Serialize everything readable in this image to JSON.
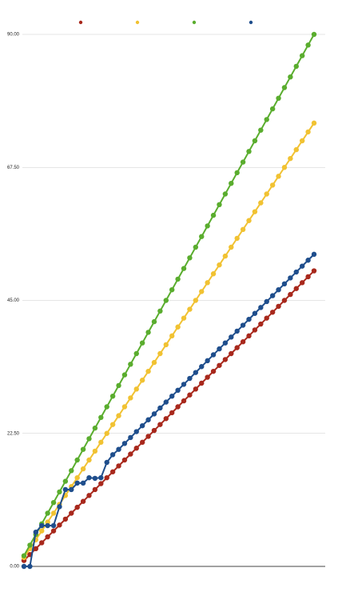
{
  "chart_data": {
    "type": "line",
    "categories": [
      null,
      null,
      null,
      null,
      null,
      null,
      null,
      null,
      null,
      null,
      null,
      null,
      null,
      null,
      null,
      null,
      null,
      null,
      null,
      null,
      null,
      null,
      null,
      null,
      null,
      null,
      null,
      null,
      null,
      null,
      null,
      null,
      null,
      null,
      null,
      null,
      null,
      null,
      null,
      null,
      null,
      null,
      null,
      null,
      null,
      null,
      null,
      null,
      null,
      null
    ],
    "series": [
      {
        "color": "#a8281c",
        "values": [
          1,
          2,
          3,
          4,
          5,
          6,
          7,
          8,
          9,
          10,
          11,
          12,
          13,
          14,
          15,
          16,
          17,
          18,
          19,
          20,
          21,
          22,
          23,
          24,
          25,
          26,
          27,
          28,
          29,
          30,
          31,
          32,
          33,
          34,
          35,
          36,
          37,
          38,
          39,
          40,
          41,
          42,
          43,
          44,
          45,
          46,
          47,
          48,
          49,
          50
        ]
      },
      {
        "color": "#f1c232",
        "values": [
          1.5,
          3,
          4.5,
          6,
          7.5,
          9,
          10.5,
          12,
          13.5,
          15,
          16.5,
          18,
          19.5,
          21,
          22.5,
          24,
          25.5,
          27,
          28.5,
          30,
          31.5,
          33,
          34.5,
          36,
          37.5,
          39,
          40.5,
          42,
          43.5,
          45,
          46.5,
          48,
          49.5,
          51,
          52.5,
          54,
          55.5,
          57,
          58.5,
          60,
          61.5,
          63,
          64.5,
          66,
          67.5,
          69,
          70.5,
          72,
          73.5,
          75
        ]
      },
      {
        "color": "#5aad2e",
        "values": [
          1.8,
          3.6,
          5.4,
          7.2,
          9,
          10.8,
          12.6,
          14.4,
          16.2,
          18,
          19.8,
          21.6,
          23.4,
          25.2,
          27,
          28.8,
          30.6,
          32.4,
          34.2,
          36,
          37.8,
          39.6,
          41.4,
          43.2,
          45,
          46.8,
          48.6,
          50.4,
          52.2,
          54,
          55.8,
          57.6,
          59.4,
          61.2,
          63,
          64.8,
          66.6,
          68.4,
          70.2,
          72,
          73.8,
          75.6,
          77.4,
          79.2,
          81,
          82.8,
          84.6,
          86.4,
          88.2,
          90
        ]
      },
      {
        "color": "#1f4e8c",
        "values": [
          0,
          0,
          5.8,
          6.9,
          6.9,
          6.9,
          10.1,
          13,
          13,
          14.1,
          14.1,
          15,
          14.9,
          15,
          17.6,
          18.9,
          19.8,
          20.8,
          21.8,
          22.8,
          23.8,
          24.8,
          25.8,
          26.8,
          27.8,
          28.8,
          29.8,
          30.8,
          31.8,
          32.8,
          33.8,
          34.8,
          35.8,
          36.8,
          37.8,
          38.8,
          39.8,
          40.8,
          41.8,
          42.8,
          43.8,
          44.8,
          45.8,
          46.8,
          47.8,
          48.8,
          49.8,
          50.8,
          51.8,
          52.8
        ]
      }
    ],
    "ylim": [
      0,
      90
    ],
    "yticks": [
      {
        "value": 0,
        "label": "0.00"
      },
      {
        "value": 22.5,
        "label": "22.50"
      },
      {
        "value": 45,
        "label": "45.00"
      },
      {
        "value": 67.5,
        "label": "67.50"
      },
      {
        "value": 90,
        "label": "90.00"
      }
    ],
    "grid": true
  }
}
